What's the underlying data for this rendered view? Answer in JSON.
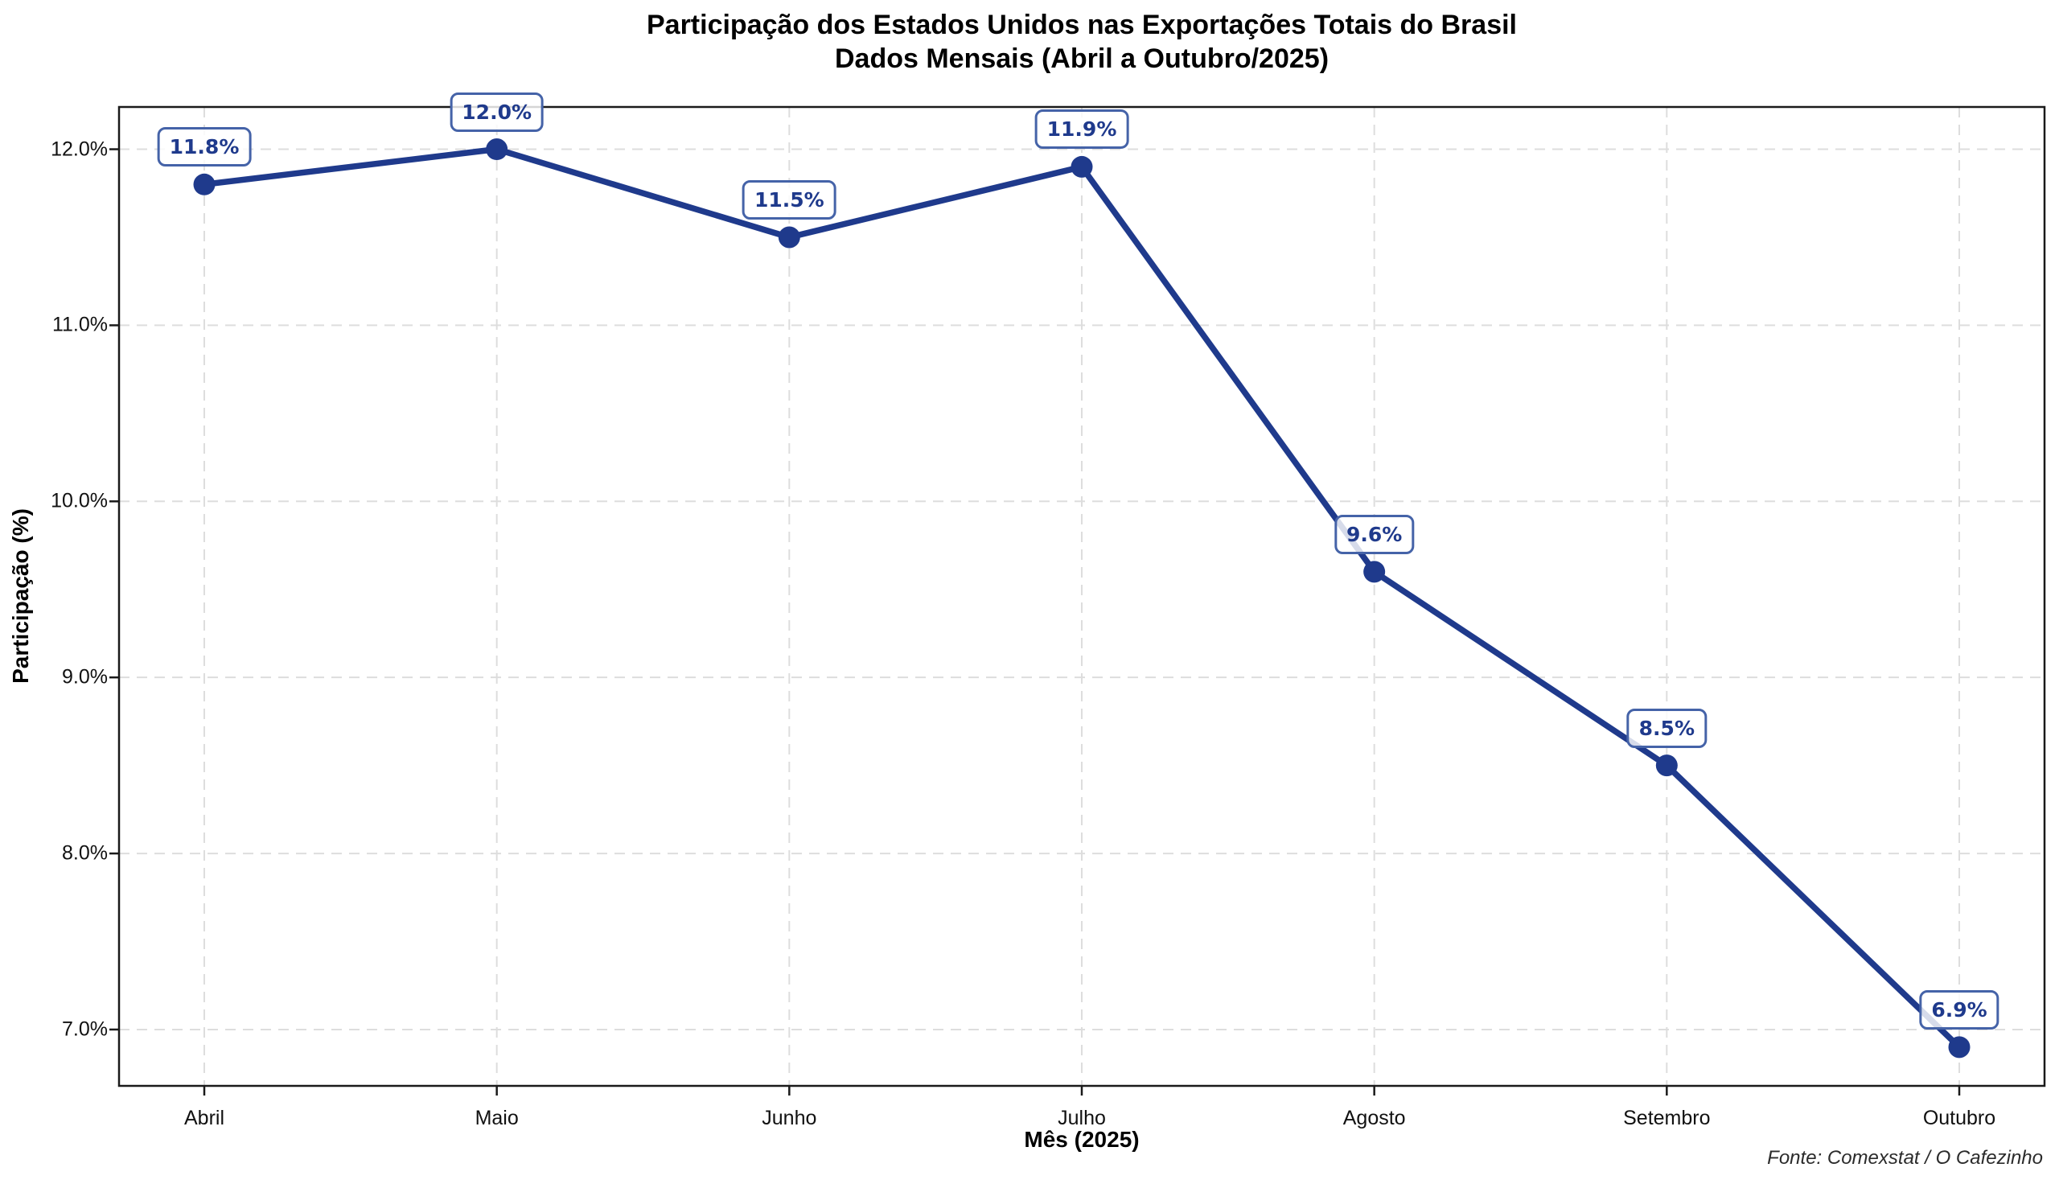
{
  "chart_data": {
    "type": "line",
    "title_line1": "Participação dos Estados Unidos nas Exportações Totais do Brasil",
    "title_line2": "Dados Mensais (Abril a Outubro/2025)",
    "xlabel": "Mês (2025)",
    "ylabel": "Participação (%)",
    "source_note": "Fonte: Comexstat / O Cafezinho",
    "categories": [
      "Abril",
      "Maio",
      "Junho",
      "Julho",
      "Agosto",
      "Setembro",
      "Outubro"
    ],
    "values": [
      11.8,
      12.0,
      11.5,
      11.9,
      9.6,
      8.5,
      6.9
    ],
    "point_labels": [
      "11.8%",
      "12.0%",
      "11.5%",
      "11.9%",
      "9.6%",
      "8.5%",
      "6.9%"
    ],
    "yticks": [
      7.0,
      8.0,
      9.0,
      10.0,
      11.0,
      12.0
    ],
    "ytick_labels": [
      "7.0%",
      "8.0%",
      "9.0%",
      "10.0%",
      "11.0%",
      "12.0%"
    ],
    "ylim": [
      6.68,
      12.24
    ],
    "grid": "dashed-both-axes",
    "legend": "none",
    "colors": {
      "line": "#1f3a8c",
      "marker": "#1f3a8c",
      "label_text": "#1f3a8c",
      "label_border": "#4563a8",
      "grid": "#dddddd",
      "spine": "#1a1a1a",
      "title": "#000000",
      "source": "#2b2b2b"
    }
  }
}
